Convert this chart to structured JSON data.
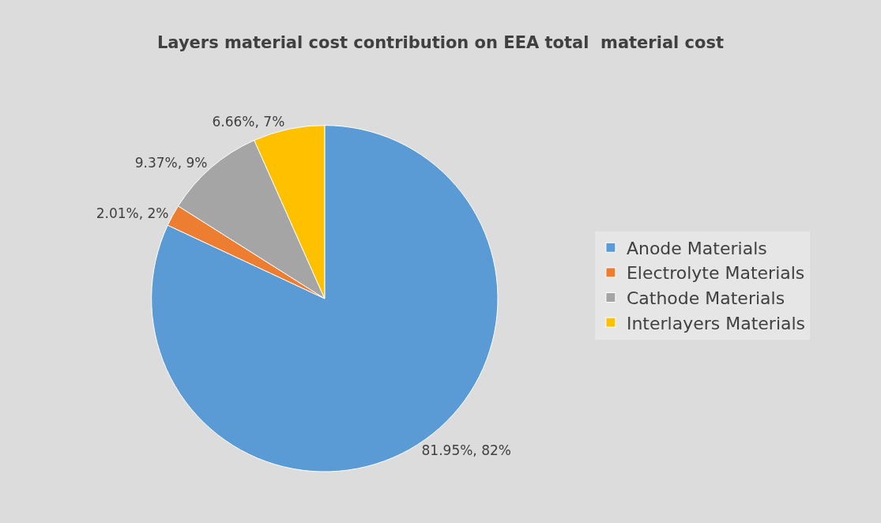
{
  "chart_data": {
    "type": "pie",
    "title": "Layers material cost contribution on EEA total  material cost",
    "categories": [
      "Anode Materials",
      "Electrolyte Materials",
      "Cathode Materials",
      "Interlayers Materials"
    ],
    "values": [
      81.95,
      2.01,
      9.37,
      6.66
    ],
    "colors": [
      "#5b9bd5",
      "#ed7d31",
      "#a5a5a5",
      "#ffc000"
    ],
    "value_labels": [
      "81.95%, 82%",
      "2.01%, 2%",
      "9.37%, 9%",
      "6.66%, 7%"
    ],
    "legend": "right"
  }
}
